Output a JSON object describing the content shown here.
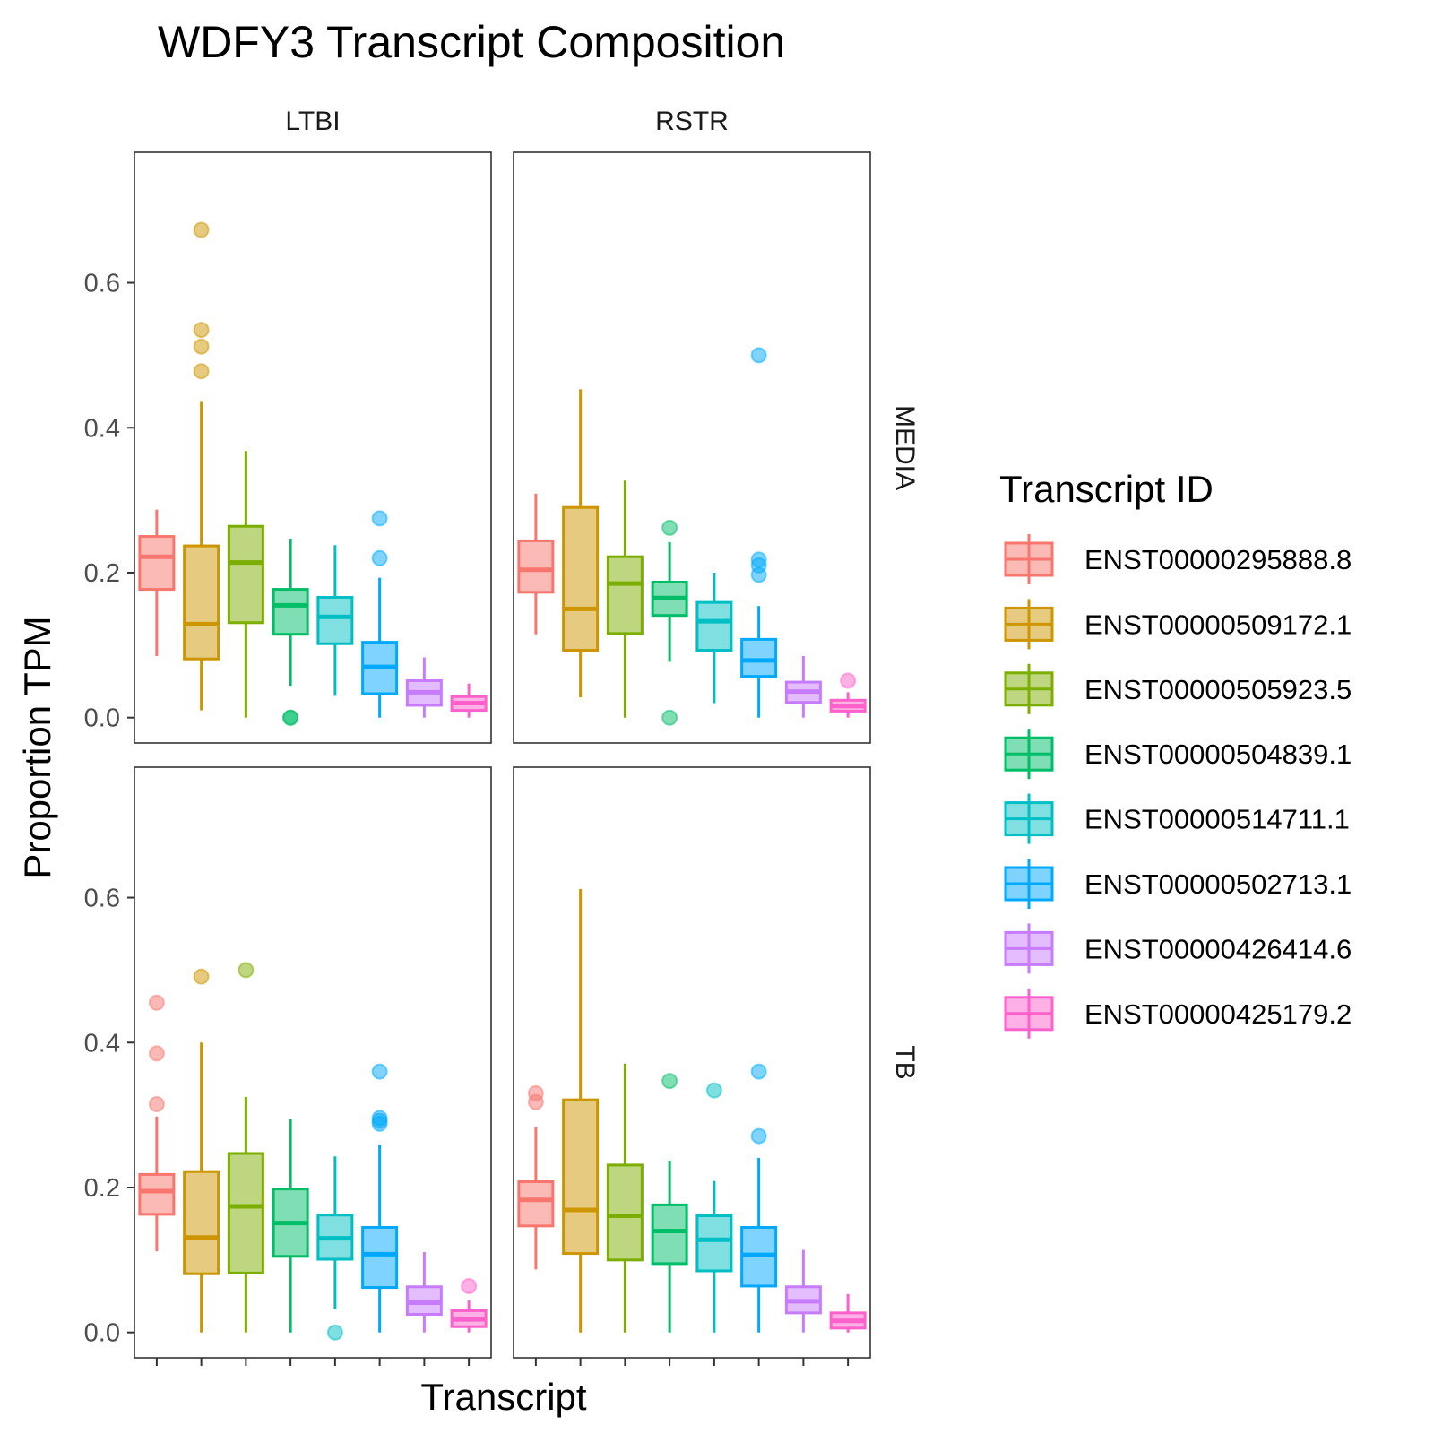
{
  "chart_data": {
    "type": "boxplot",
    "title": "WDFY3 Transcript Composition",
    "xlabel": "Transcript",
    "ylabel": "Proportion TPM",
    "ylim": [
      -0.035,
      0.78
    ],
    "yticks": [
      0.0,
      0.2,
      0.4,
      0.6
    ],
    "ytick_labels": [
      "0.0",
      "0.2",
      "0.4",
      "0.6"
    ],
    "grid": false,
    "legend": {
      "title": "Transcript ID",
      "position": "right",
      "entries": [
        {
          "name": "ENST00000295888.8",
          "color": "#F8766D"
        },
        {
          "name": "ENST00000509172.1",
          "color": "#CD9600"
        },
        {
          "name": "ENST00000505923.5",
          "color": "#7CAE00"
        },
        {
          "name": "ENST00000504839.1",
          "color": "#00BE67"
        },
        {
          "name": "ENST00000514711.1",
          "color": "#00BFC4"
        },
        {
          "name": "ENST00000502713.1",
          "color": "#00A9FF"
        },
        {
          "name": "ENST00000426414.6",
          "color": "#C77CFF"
        },
        {
          "name": "ENST00000425179.2",
          "color": "#FF61CC"
        }
      ]
    },
    "col_facets": [
      "LTBI",
      "RSTR"
    ],
    "row_facets": [
      "MEDIA",
      "TB"
    ],
    "panels": [
      {
        "col": "LTBI",
        "row": "MEDIA",
        "boxes": [
          {
            "transcript": "ENST00000295888.8",
            "low": 0.085,
            "q1": 0.177,
            "median": 0.222,
            "q3": 0.25,
            "high": 0.287,
            "outliers": []
          },
          {
            "transcript": "ENST00000509172.1",
            "low": 0.01,
            "q1": 0.081,
            "median": 0.129,
            "q3": 0.237,
            "high": 0.437,
            "outliers": [
              0.673,
              0.535,
              0.512,
              0.478
            ]
          },
          {
            "transcript": "ENST00000505923.5",
            "low": 0.0,
            "q1": 0.131,
            "median": 0.214,
            "q3": 0.264,
            "high": 0.368,
            "outliers": []
          },
          {
            "transcript": "ENST00000504839.1",
            "low": 0.044,
            "q1": 0.115,
            "median": 0.155,
            "q3": 0.177,
            "high": 0.247,
            "outliers": [
              0.0,
              0.0
            ]
          },
          {
            "transcript": "ENST00000514711.1",
            "low": 0.03,
            "q1": 0.102,
            "median": 0.139,
            "q3": 0.166,
            "high": 0.238,
            "outliers": []
          },
          {
            "transcript": "ENST00000502713.1",
            "low": 0.0,
            "q1": 0.033,
            "median": 0.07,
            "q3": 0.104,
            "high": 0.193,
            "outliers": [
              0.275,
              0.22
            ]
          },
          {
            "transcript": "ENST00000426414.6",
            "low": 0.0,
            "q1": 0.017,
            "median": 0.035,
            "q3": 0.051,
            "high": 0.083,
            "outliers": []
          },
          {
            "transcript": "ENST00000425179.2",
            "low": 0.0,
            "q1": 0.01,
            "median": 0.02,
            "q3": 0.029,
            "high": 0.047,
            "outliers": []
          }
        ]
      },
      {
        "col": "RSTR",
        "row": "MEDIA",
        "boxes": [
          {
            "transcript": "ENST00000295888.8",
            "low": 0.115,
            "q1": 0.173,
            "median": 0.204,
            "q3": 0.244,
            "high": 0.309,
            "outliers": []
          },
          {
            "transcript": "ENST00000509172.1",
            "low": 0.028,
            "q1": 0.093,
            "median": 0.15,
            "q3": 0.29,
            "high": 0.453,
            "outliers": []
          },
          {
            "transcript": "ENST00000505923.5",
            "low": 0.0,
            "q1": 0.116,
            "median": 0.185,
            "q3": 0.222,
            "high": 0.327,
            "outliers": []
          },
          {
            "transcript": "ENST00000504839.1",
            "low": 0.077,
            "q1": 0.141,
            "median": 0.165,
            "q3": 0.187,
            "high": 0.242,
            "outliers": [
              0.262,
              0.0
            ]
          },
          {
            "transcript": "ENST00000514711.1",
            "low": 0.02,
            "q1": 0.093,
            "median": 0.133,
            "q3": 0.159,
            "high": 0.2,
            "outliers": []
          },
          {
            "transcript": "ENST00000502713.1",
            "low": 0.0,
            "q1": 0.057,
            "median": 0.079,
            "q3": 0.108,
            "high": 0.154,
            "outliers": [
              0.5,
              0.218,
              0.21,
              0.197
            ]
          },
          {
            "transcript": "ENST00000426414.6",
            "low": 0.0,
            "q1": 0.021,
            "median": 0.036,
            "q3": 0.049,
            "high": 0.085,
            "outliers": []
          },
          {
            "transcript": "ENST00000425179.2",
            "low": 0.0,
            "q1": 0.009,
            "median": 0.016,
            "q3": 0.024,
            "high": 0.035,
            "outliers": [
              0.051
            ]
          }
        ]
      },
      {
        "col": "LTBI",
        "row": "TB",
        "boxes": [
          {
            "transcript": "ENST00000295888.8",
            "low": 0.112,
            "q1": 0.163,
            "median": 0.195,
            "q3": 0.218,
            "high": 0.298,
            "outliers": [
              0.455,
              0.385,
              0.315
            ]
          },
          {
            "transcript": "ENST00000509172.1",
            "low": 0.0,
            "q1": 0.081,
            "median": 0.131,
            "q3": 0.222,
            "high": 0.4,
            "outliers": [
              0.491
            ]
          },
          {
            "transcript": "ENST00000505923.5",
            "low": 0.0,
            "q1": 0.082,
            "median": 0.174,
            "q3": 0.247,
            "high": 0.325,
            "outliers": [
              0.5
            ]
          },
          {
            "transcript": "ENST00000504839.1",
            "low": 0.0,
            "q1": 0.105,
            "median": 0.151,
            "q3": 0.198,
            "high": 0.295,
            "outliers": []
          },
          {
            "transcript": "ENST00000514711.1",
            "low": 0.032,
            "q1": 0.101,
            "median": 0.13,
            "q3": 0.162,
            "high": 0.243,
            "outliers": [
              0.0
            ]
          },
          {
            "transcript": "ENST00000502713.1",
            "low": 0.0,
            "q1": 0.062,
            "median": 0.108,
            "q3": 0.145,
            "high": 0.259,
            "outliers": [
              0.36,
              0.296,
              0.292,
              0.288
            ]
          },
          {
            "transcript": "ENST00000426414.6",
            "low": 0.0,
            "q1": 0.025,
            "median": 0.041,
            "q3": 0.063,
            "high": 0.111,
            "outliers": []
          },
          {
            "transcript": "ENST00000425179.2",
            "low": 0.0,
            "q1": 0.008,
            "median": 0.018,
            "q3": 0.03,
            "high": 0.044,
            "outliers": [
              0.064
            ]
          }
        ]
      },
      {
        "col": "RSTR",
        "row": "TB",
        "boxes": [
          {
            "transcript": "ENST00000295888.8",
            "low": 0.087,
            "q1": 0.147,
            "median": 0.183,
            "q3": 0.208,
            "high": 0.283,
            "outliers": [
              0.33,
              0.318
            ]
          },
          {
            "transcript": "ENST00000509172.1",
            "low": 0.0,
            "q1": 0.109,
            "median": 0.169,
            "q3": 0.321,
            "high": 0.612,
            "outliers": []
          },
          {
            "transcript": "ENST00000505923.5",
            "low": 0.0,
            "q1": 0.1,
            "median": 0.161,
            "q3": 0.231,
            "high": 0.371,
            "outliers": []
          },
          {
            "transcript": "ENST00000504839.1",
            "low": 0.0,
            "q1": 0.095,
            "median": 0.14,
            "q3": 0.176,
            "high": 0.237,
            "outliers": [
              0.347
            ]
          },
          {
            "transcript": "ENST00000514711.1",
            "low": 0.0,
            "q1": 0.085,
            "median": 0.128,
            "q3": 0.161,
            "high": 0.209,
            "outliers": [
              0.334
            ]
          },
          {
            "transcript": "ENST00000502713.1",
            "low": 0.0,
            "q1": 0.064,
            "median": 0.107,
            "q3": 0.145,
            "high": 0.241,
            "outliers": [
              0.36,
              0.271
            ]
          },
          {
            "transcript": "ENST00000426414.6",
            "low": 0.0,
            "q1": 0.027,
            "median": 0.043,
            "q3": 0.063,
            "high": 0.114,
            "outliers": []
          },
          {
            "transcript": "ENST00000425179.2",
            "low": 0.0,
            "q1": 0.006,
            "median": 0.016,
            "q3": 0.027,
            "high": 0.053,
            "outliers": []
          }
        ]
      }
    ]
  }
}
